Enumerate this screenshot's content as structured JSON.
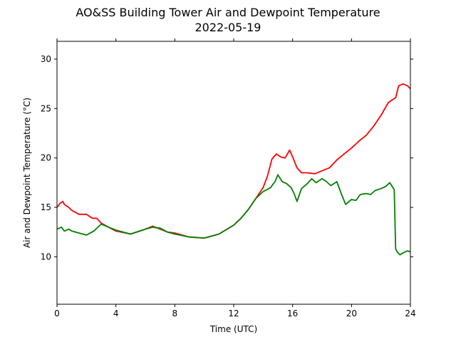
{
  "chart_data": {
    "type": "line",
    "title": "AO&SS Building Tower Air and Dewpoint Temperature",
    "subtitle": "2022-05-19",
    "xlabel": "Time (UTC)",
    "ylabel": "Air and Dewpoint Temperature (°C)",
    "xlim": [
      0,
      24
    ],
    "ylim": [
      5.2,
      31.8
    ],
    "xticks": [
      0,
      4,
      8,
      12,
      16,
      20,
      24
    ],
    "yticks": [
      10,
      15,
      20,
      25,
      30
    ],
    "grid": false,
    "series": [
      {
        "color": "#ff0000",
        "x": [
          0,
          0.2,
          0.4,
          0.5,
          0.8,
          1.0,
          1.5,
          2.0,
          2.4,
          2.7,
          3.0,
          3.5,
          4.0,
          5.0,
          6.0,
          6.5,
          7.0,
          7.5,
          8.0,
          9.0,
          10.0,
          11.0,
          12.0,
          12.5,
          13.0,
          13.5,
          14.0,
          14.3,
          14.6,
          14.9,
          15.2,
          15.5,
          15.8,
          16.0,
          16.3,
          16.6,
          17.0,
          17.5,
          18.0,
          18.5,
          19.0,
          19.5,
          20.0,
          20.5,
          21.0,
          21.5,
          22.0,
          22.5,
          22.8,
          23.0,
          23.2,
          23.5,
          23.8,
          24.0
        ],
        "y": [
          15.0,
          15.4,
          15.6,
          15.3,
          15.0,
          14.7,
          14.3,
          14.3,
          13.9,
          13.9,
          13.4,
          13.0,
          12.6,
          12.3,
          12.8,
          13.1,
          12.8,
          12.5,
          12.4,
          12.0,
          11.9,
          12.3,
          13.2,
          13.9,
          14.8,
          15.9,
          17.0,
          18.2,
          19.9,
          20.4,
          20.1,
          20.0,
          20.8,
          20.1,
          19.0,
          18.5,
          18.5,
          18.4,
          18.7,
          19.0,
          19.8,
          20.4,
          21.0,
          21.7,
          22.3,
          23.2,
          24.3,
          25.6,
          25.9,
          26.1,
          27.3,
          27.5,
          27.3,
          27.0
        ]
      },
      {
        "color": "#008000",
        "x": [
          0,
          0.3,
          0.5,
          0.8,
          1.0,
          1.5,
          2.0,
          2.5,
          3.0,
          3.5,
          4.0,
          5.0,
          6.0,
          6.5,
          7.0,
          7.5,
          8.0,
          9.0,
          10.0,
          11.0,
          12.0,
          12.5,
          13.0,
          13.5,
          14.0,
          14.5,
          14.8,
          15.0,
          15.3,
          15.6,
          15.9,
          16.1,
          16.3,
          16.6,
          17.0,
          17.3,
          17.6,
          18.0,
          18.3,
          18.6,
          19.0,
          19.3,
          19.6,
          20.0,
          20.3,
          20.6,
          21.0,
          21.3,
          21.6,
          22.0,
          22.3,
          22.6,
          22.9,
          23.0,
          23.1,
          23.3,
          23.5,
          23.8,
          24.0
        ],
        "y": [
          12.8,
          13.0,
          12.6,
          12.8,
          12.6,
          12.4,
          12.2,
          12.6,
          13.3,
          13.0,
          12.7,
          12.3,
          12.8,
          13.0,
          12.9,
          12.5,
          12.3,
          12.0,
          11.9,
          12.3,
          13.2,
          13.9,
          14.8,
          15.9,
          16.6,
          17.0,
          17.6,
          18.3,
          17.6,
          17.4,
          17.0,
          16.4,
          15.6,
          16.9,
          17.4,
          17.9,
          17.5,
          17.9,
          17.6,
          17.2,
          17.6,
          16.4,
          15.3,
          15.8,
          15.7,
          16.3,
          16.4,
          16.3,
          16.7,
          16.9,
          17.1,
          17.5,
          16.8,
          10.8,
          10.5,
          10.2,
          10.4,
          10.6,
          10.5
        ]
      }
    ]
  }
}
